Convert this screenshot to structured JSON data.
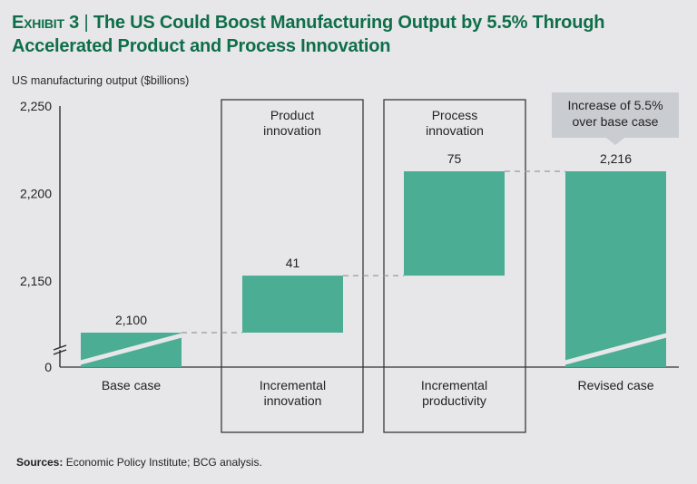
{
  "header": {
    "exhibit": "Exhibit 3",
    "separator": "|",
    "title": "The US Could Boost Manufacturing Output by 5.5% Through Accelerated Product and Process Innovation"
  },
  "footer": {
    "sources_label": "Sources:",
    "sources_text": "Economic Policy Institute; BCG analysis."
  },
  "colors": {
    "bar": "#4aad94",
    "title": "#0f6e4a",
    "callout": "#c9ccd1",
    "background": "#e7e7e9"
  },
  "chart_data": {
    "type": "bar",
    "subtype": "waterfall",
    "title": "The US Could Boost Manufacturing Output by 5.5% Through Accelerated Product and Process Innovation",
    "ylabel": "US manufacturing output ($billions)",
    "xlabel": "",
    "yticks": [
      "2,250",
      "2,200",
      "2,150",
      "0"
    ],
    "ytick_values": [
      2250,
      2200,
      2150,
      0
    ],
    "ylim": [
      0,
      2250
    ],
    "axis_break": true,
    "grid": false,
    "categories": [
      "Base case",
      "Incremental innovation",
      "Incremental productivity",
      "Revised case"
    ],
    "bars": [
      {
        "category": "Base case",
        "kind": "total",
        "start": 0,
        "end": 2100,
        "label": "2,100",
        "value": 2100,
        "broken": true
      },
      {
        "category": "Incremental innovation",
        "kind": "delta",
        "start": 2100,
        "end": 2141,
        "label": "41",
        "value": 41,
        "group_label": "Product innovation"
      },
      {
        "category": "Incremental productivity",
        "kind": "delta",
        "start": 2141,
        "end": 2216,
        "label": "75",
        "value": 75,
        "group_label": "Process innovation"
      },
      {
        "category": "Revised case",
        "kind": "total",
        "start": 0,
        "end": 2216,
        "label": "2,216",
        "value": 2216,
        "broken": true
      }
    ],
    "annotations": [
      {
        "text": "Increase of 5.5% over base case",
        "target": "Revised case"
      }
    ]
  }
}
